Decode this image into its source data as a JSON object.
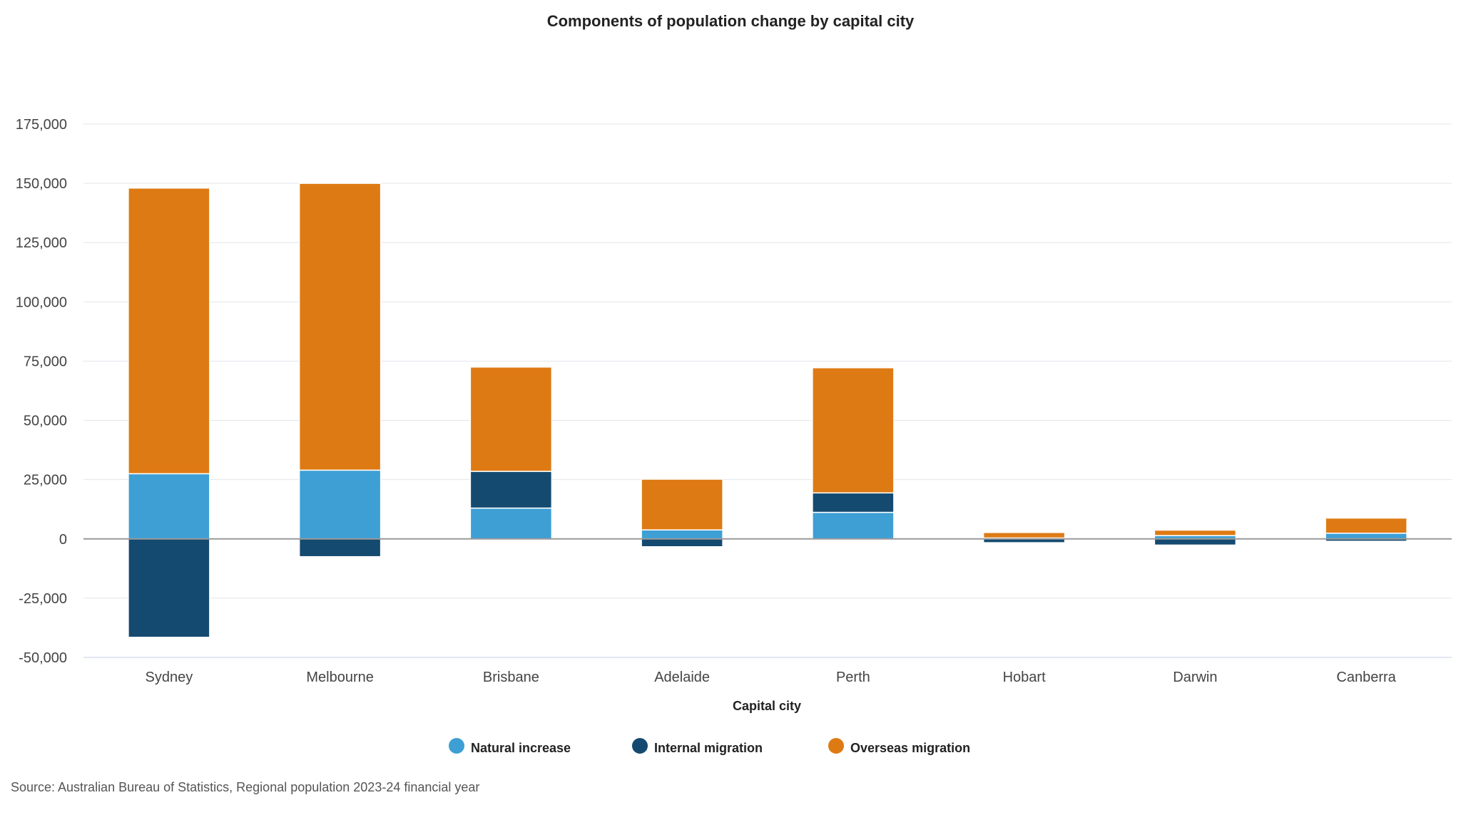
{
  "chart_data": {
    "type": "bar",
    "stacked": true,
    "title": "Components of population change by capital city",
    "xlabel": "Capital city",
    "ylabel": "",
    "ylim": [
      -50000,
      175000
    ],
    "yticks": [
      175000,
      150000,
      125000,
      100000,
      75000,
      50000,
      25000,
      0,
      -25000,
      -50000
    ],
    "ytick_labels": [
      "175,000",
      "150,000",
      "125,000",
      "100,000",
      "75,000",
      "50,000",
      "25,000",
      "0",
      "-25,000",
      "-50,000"
    ],
    "grid": true,
    "legend_position": "bottom",
    "categories": [
      "Sydney",
      "Melbourne",
      "Brisbane",
      "Adelaide",
      "Perth",
      "Hobart",
      "Darwin",
      "Canberra"
    ],
    "series": [
      {
        "name": "Natural increase",
        "color": "#3d9fd4",
        "values": [
          27500,
          29000,
          13000,
          3800,
          11200,
          400,
          1400,
          2400
        ]
      },
      {
        "name": "Internal migration",
        "color": "#154a70",
        "values": [
          -41500,
          -7500,
          15500,
          -3300,
          8200,
          -1600,
          -2600,
          -1000
        ]
      },
      {
        "name": "Overseas migration",
        "color": "#de7a14",
        "values": [
          120500,
          121000,
          44000,
          21400,
          52800,
          2300,
          2300,
          6400
        ]
      }
    ],
    "source": "Source: Australian Bureau of Statistics, Regional population 2023-24 financial year"
  }
}
